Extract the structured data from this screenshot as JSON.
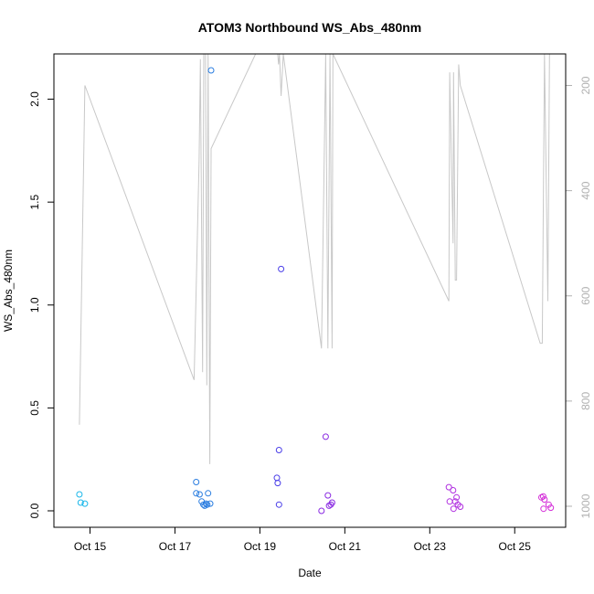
{
  "chart_data": {
    "type": "scatter",
    "title": "ATOM3 Northbound WS_Abs_480nm",
    "xlabel": "Date",
    "ylabel": "WS_Abs_480nm",
    "x_unit": "days in October",
    "xlim": [
      14.15,
      26.2
    ],
    "ylim": [
      -0.08,
      2.22
    ],
    "x_ticks": [
      {
        "value": 15,
        "label": "Oct 15"
      },
      {
        "value": 17,
        "label": "Oct 17"
      },
      {
        "value": 19,
        "label": "Oct 19"
      },
      {
        "value": 21,
        "label": "Oct 21"
      },
      {
        "value": 23,
        "label": "Oct 23"
      },
      {
        "value": 25,
        "label": "Oct 25"
      }
    ],
    "y_ticks": [
      0.0,
      0.5,
      1.0,
      1.5,
      2.0
    ],
    "y_tick_labels": [
      "0.0",
      "0.5",
      "1.0",
      "1.5",
      "2.0"
    ],
    "right_axis": {
      "lim": [
        1040,
        140
      ],
      "ticks": [
        200,
        400,
        600,
        800,
        1000
      ],
      "tick_labels": [
        "200",
        "400",
        "600",
        "800",
        "1000"
      ],
      "color": "#b0b0b0"
    },
    "grid": false,
    "legend": "none",
    "points": [
      {
        "x": 14.75,
        "y": 0.08,
        "color": "#1ab7ea"
      },
      {
        "x": 14.78,
        "y": 0.04,
        "color": "#1ab7ea"
      },
      {
        "x": 14.88,
        "y": 0.035,
        "color": "#1ab7ea"
      },
      {
        "x": 17.5,
        "y": 0.14,
        "color": "#2a7de0"
      },
      {
        "x": 17.5,
        "y": 0.085,
        "color": "#2a7de0"
      },
      {
        "x": 17.58,
        "y": 0.08,
        "color": "#2a7de0"
      },
      {
        "x": 17.63,
        "y": 0.045,
        "color": "#2a7de0"
      },
      {
        "x": 17.67,
        "y": 0.03,
        "color": "#2a7de0"
      },
      {
        "x": 17.7,
        "y": 0.025,
        "color": "#2a7de0"
      },
      {
        "x": 17.73,
        "y": 0.035,
        "color": "#2a7de0"
      },
      {
        "x": 17.76,
        "y": 0.03,
        "color": "#2a7de0"
      },
      {
        "x": 17.78,
        "y": 0.085,
        "color": "#2a7de0"
      },
      {
        "x": 17.83,
        "y": 0.035,
        "color": "#2a7de0"
      },
      {
        "x": 17.85,
        "y": 2.14,
        "color": "#2a7de0"
      },
      {
        "x": 19.4,
        "y": 0.16,
        "color": "#4a3ee8"
      },
      {
        "x": 19.42,
        "y": 0.135,
        "color": "#4a3ee8"
      },
      {
        "x": 19.45,
        "y": 0.295,
        "color": "#4a3ee8"
      },
      {
        "x": 19.45,
        "y": 0.03,
        "color": "#4a3ee8"
      },
      {
        "x": 19.5,
        "y": 1.175,
        "color": "#4a3ee8"
      },
      {
        "x": 20.45,
        "y": 0.0,
        "color": "#8a2be2"
      },
      {
        "x": 20.55,
        "y": 0.36,
        "color": "#8a2be2"
      },
      {
        "x": 20.6,
        "y": 0.075,
        "color": "#8a2be2"
      },
      {
        "x": 20.63,
        "y": 0.025,
        "color": "#8a2be2"
      },
      {
        "x": 20.67,
        "y": 0.03,
        "color": "#8a2be2"
      },
      {
        "x": 20.7,
        "y": 0.04,
        "color": "#8a2be2"
      },
      {
        "x": 23.45,
        "y": 0.115,
        "color": "#b030e0"
      },
      {
        "x": 23.47,
        "y": 0.045,
        "color": "#b030e0"
      },
      {
        "x": 23.55,
        "y": 0.1,
        "color": "#b030e0"
      },
      {
        "x": 23.56,
        "y": 0.01,
        "color": "#b030e0"
      },
      {
        "x": 23.6,
        "y": 0.045,
        "color": "#b030e0"
      },
      {
        "x": 23.63,
        "y": 0.065,
        "color": "#b030e0"
      },
      {
        "x": 23.66,
        "y": 0.03,
        "color": "#b030e0"
      },
      {
        "x": 23.72,
        "y": 0.02,
        "color": "#b030e0"
      },
      {
        "x": 25.63,
        "y": 0.065,
        "color": "#d42fd8"
      },
      {
        "x": 25.67,
        "y": 0.07,
        "color": "#d42fd8"
      },
      {
        "x": 25.68,
        "y": 0.01,
        "color": "#d42fd8"
      },
      {
        "x": 25.7,
        "y": 0.055,
        "color": "#d42fd8"
      },
      {
        "x": 25.8,
        "y": 0.03,
        "color": "#d42fd8"
      },
      {
        "x": 25.85,
        "y": 0.015,
        "color": "#d42fd8"
      }
    ],
    "line_series": {
      "color": "#c8c8c8",
      "axis": "right",
      "points": [
        {
          "x": 14.75,
          "y": 845
        },
        {
          "x": 14.88,
          "y": 200
        },
        {
          "x": 17.45,
          "y": 760
        },
        {
          "x": 17.57,
          "y": 340
        },
        {
          "x": 17.6,
          "y": 150
        },
        {
          "x": 17.65,
          "y": 745
        },
        {
          "x": 17.68,
          "y": 140
        },
        {
          "x": 17.72,
          "y": 140
        },
        {
          "x": 17.75,
          "y": 770
        },
        {
          "x": 17.78,
          "y": 140
        },
        {
          "x": 17.82,
          "y": 920
        },
        {
          "x": 17.85,
          "y": 320
        },
        {
          "x": 18.9,
          "y": 140
        },
        {
          "x": 19.42,
          "y": 140
        },
        {
          "x": 19.44,
          "y": 160
        },
        {
          "x": 19.46,
          "y": 140
        },
        {
          "x": 19.5,
          "y": 220
        },
        {
          "x": 19.55,
          "y": 140
        },
        {
          "x": 20.45,
          "y": 700
        },
        {
          "x": 20.55,
          "y": 140
        },
        {
          "x": 20.6,
          "y": 700
        },
        {
          "x": 20.65,
          "y": 140
        },
        {
          "x": 20.7,
          "y": 700
        },
        {
          "x": 20.72,
          "y": 140
        },
        {
          "x": 23.45,
          "y": 610
        },
        {
          "x": 23.47,
          "y": 175
        },
        {
          "x": 23.55,
          "y": 500
        },
        {
          "x": 23.56,
          "y": 175
        },
        {
          "x": 23.6,
          "y": 570
        },
        {
          "x": 23.63,
          "y": 570
        },
        {
          "x": 23.68,
          "y": 160
        },
        {
          "x": 23.72,
          "y": 200
        },
        {
          "x": 25.6,
          "y": 690
        },
        {
          "x": 25.65,
          "y": 690
        },
        {
          "x": 25.7,
          "y": 140
        },
        {
          "x": 25.78,
          "y": 610
        },
        {
          "x": 25.82,
          "y": 140
        }
      ]
    }
  }
}
